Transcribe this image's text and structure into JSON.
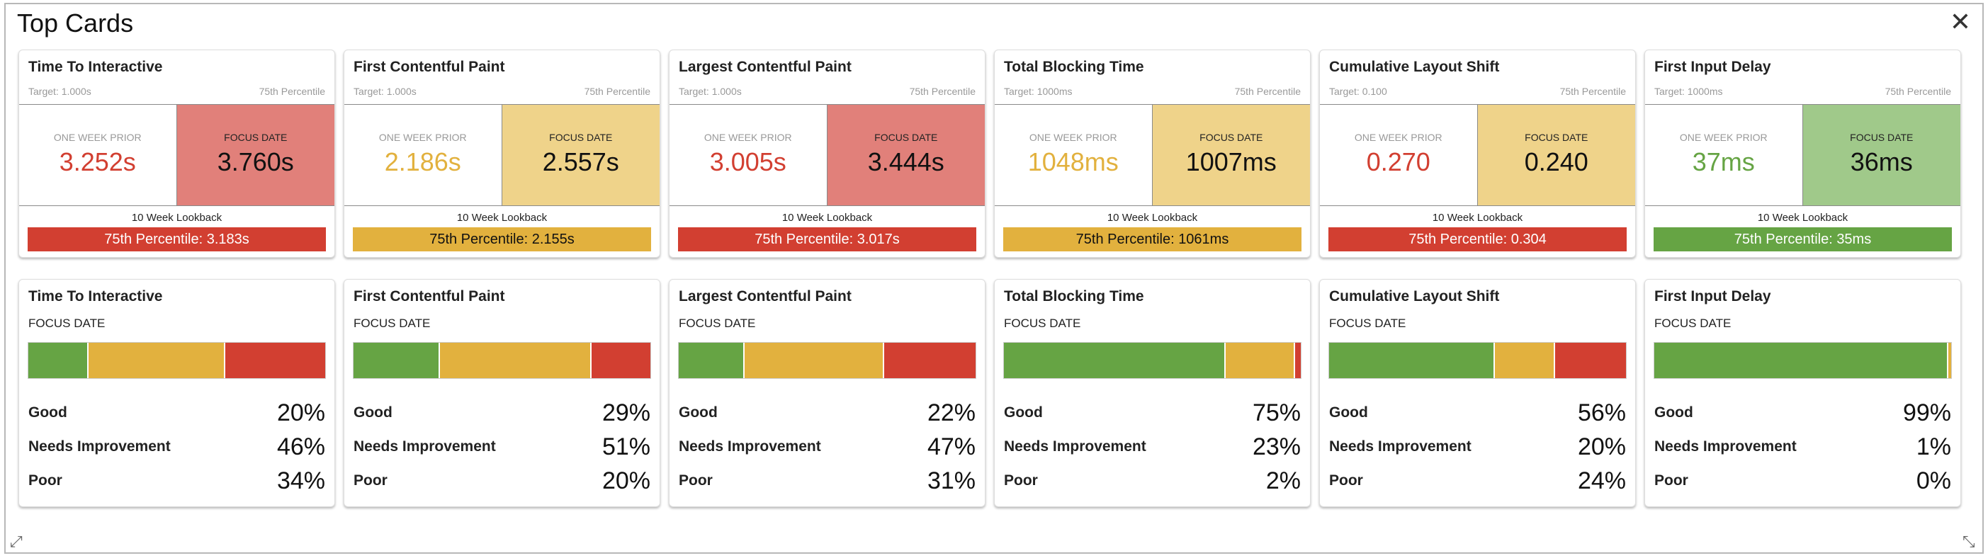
{
  "panel": {
    "title": "Top Cards",
    "close_icon": "close-icon"
  },
  "colors": {
    "red": "#d23f31",
    "red_light": "#e1807a",
    "yellow": "#e2b13e",
    "yellow_light": "#efd38a",
    "green": "#66a444",
    "green_light": "#a0c98a"
  },
  "top_cards": [
    {
      "title": "Time To Interactive",
      "target": "Target: 1.000s",
      "percentile_label": "75th Percentile",
      "prior_label": "ONE WEEK PRIOR",
      "prior_value": "3.252s",
      "prior_status": "red",
      "focus_label": "FOCUS DATE",
      "focus_value": "3.760s",
      "focus_status": "red",
      "lookback_label": "10 Week Lookback",
      "lookback_value": "75th Percentile: 3.183s",
      "lookback_status": "red"
    },
    {
      "title": "First Contentful Paint",
      "target": "Target: 1.000s",
      "percentile_label": "75th Percentile",
      "prior_label": "ONE WEEK PRIOR",
      "prior_value": "2.186s",
      "prior_status": "yellow",
      "focus_label": "FOCUS DATE",
      "focus_value": "2.557s",
      "focus_status": "yellow",
      "lookback_label": "10 Week Lookback",
      "lookback_value": "75th Percentile: 2.155s",
      "lookback_status": "yellow"
    },
    {
      "title": "Largest Contentful Paint",
      "target": "Target: 1.000s",
      "percentile_label": "75th Percentile",
      "prior_label": "ONE WEEK PRIOR",
      "prior_value": "3.005s",
      "prior_status": "red",
      "focus_label": "FOCUS DATE",
      "focus_value": "3.444s",
      "focus_status": "red",
      "lookback_label": "10 Week Lookback",
      "lookback_value": "75th Percentile: 3.017s",
      "lookback_status": "red"
    },
    {
      "title": "Total Blocking Time",
      "target": "Target: 1000ms",
      "percentile_label": "75th Percentile",
      "prior_label": "ONE WEEK PRIOR",
      "prior_value": "1048ms",
      "prior_status": "yellow",
      "focus_label": "FOCUS DATE",
      "focus_value": "1007ms",
      "focus_status": "yellow",
      "lookback_label": "10 Week Lookback",
      "lookback_value": "75th Percentile: 1061ms",
      "lookback_status": "yellow"
    },
    {
      "title": "Cumulative Layout Shift",
      "target": "Target: 0.100",
      "percentile_label": "75th Percentile",
      "prior_label": "ONE WEEK PRIOR",
      "prior_value": "0.270",
      "prior_status": "red",
      "focus_label": "FOCUS DATE",
      "focus_value": "0.240",
      "focus_status": "yellow",
      "lookback_label": "10 Week Lookback",
      "lookback_value": "75th Percentile: 0.304",
      "lookback_status": "red"
    },
    {
      "title": "First Input Delay",
      "target": "Target: 1000ms",
      "percentile_label": "75th Percentile",
      "prior_label": "ONE WEEK PRIOR",
      "prior_value": "37ms",
      "prior_status": "green",
      "focus_label": "FOCUS DATE",
      "focus_value": "36ms",
      "focus_status": "green",
      "lookback_label": "10 Week Lookback",
      "lookback_value": "75th Percentile: 35ms",
      "lookback_status": "green"
    }
  ],
  "bottom_cards": [
    {
      "title": "Time To Interactive",
      "focus_label": "FOCUS DATE",
      "good": 20,
      "needs": 46,
      "poor": 34,
      "good_text": "20%",
      "needs_text": "46%",
      "poor_text": "34%",
      "good_label": "Good",
      "needs_label": "Needs Improvement",
      "poor_label": "Poor"
    },
    {
      "title": "First Contentful Paint",
      "focus_label": "FOCUS DATE",
      "good": 29,
      "needs": 51,
      "poor": 20,
      "good_text": "29%",
      "needs_text": "51%",
      "poor_text": "20%",
      "good_label": "Good",
      "needs_label": "Needs Improvement",
      "poor_label": "Poor"
    },
    {
      "title": "Largest Contentful Paint",
      "focus_label": "FOCUS DATE",
      "good": 22,
      "needs": 47,
      "poor": 31,
      "good_text": "22%",
      "needs_text": "47%",
      "poor_text": "31%",
      "good_label": "Good",
      "needs_label": "Needs Improvement",
      "poor_label": "Poor"
    },
    {
      "title": "Total Blocking Time",
      "focus_label": "FOCUS DATE",
      "good": 75,
      "needs": 23,
      "poor": 2,
      "good_text": "75%",
      "needs_text": "23%",
      "poor_text": "2%",
      "good_label": "Good",
      "needs_label": "Needs Improvement",
      "poor_label": "Poor"
    },
    {
      "title": "Cumulative Layout Shift",
      "focus_label": "FOCUS DATE",
      "good": 56,
      "needs": 20,
      "poor": 24,
      "good_text": "56%",
      "needs_text": "20%",
      "poor_text": "24%",
      "good_label": "Good",
      "needs_label": "Needs Improvement",
      "poor_label": "Poor"
    },
    {
      "title": "First Input Delay",
      "focus_label": "FOCUS DATE",
      "good": 99,
      "needs": 1,
      "poor": 0,
      "good_text": "99%",
      "needs_text": "1%",
      "poor_text": "0%",
      "good_label": "Good",
      "needs_label": "Needs Improvement",
      "poor_label": "Poor"
    }
  ]
}
